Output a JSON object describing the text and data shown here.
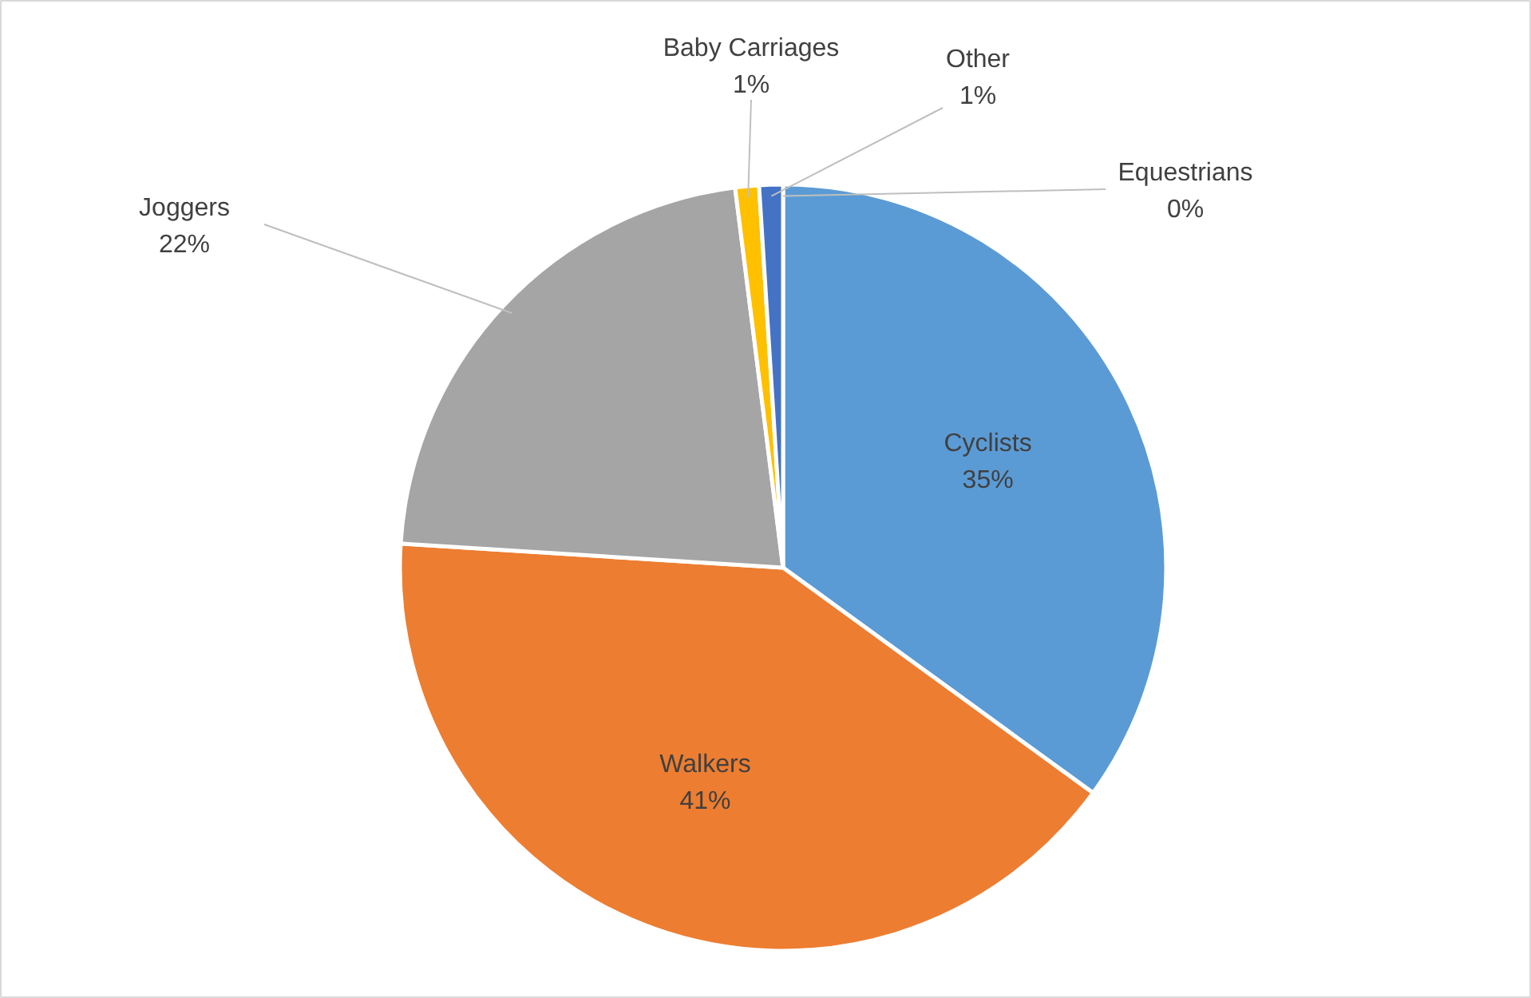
{
  "chart_data": {
    "type": "pie",
    "categories": [
      "Cyclists",
      "Walkers",
      "Joggers",
      "Baby Carriages",
      "Other",
      "Equestrians"
    ],
    "values": [
      35,
      41,
      22,
      1,
      1,
      0
    ],
    "colors": [
      "#5b9bd5",
      "#ed7d31",
      "#a5a5a5",
      "#ffc000",
      "#4472c4",
      "#70ad47"
    ],
    "value_labels": [
      "35%",
      "41%",
      "22%",
      "1%",
      "1%",
      "0%"
    ]
  }
}
